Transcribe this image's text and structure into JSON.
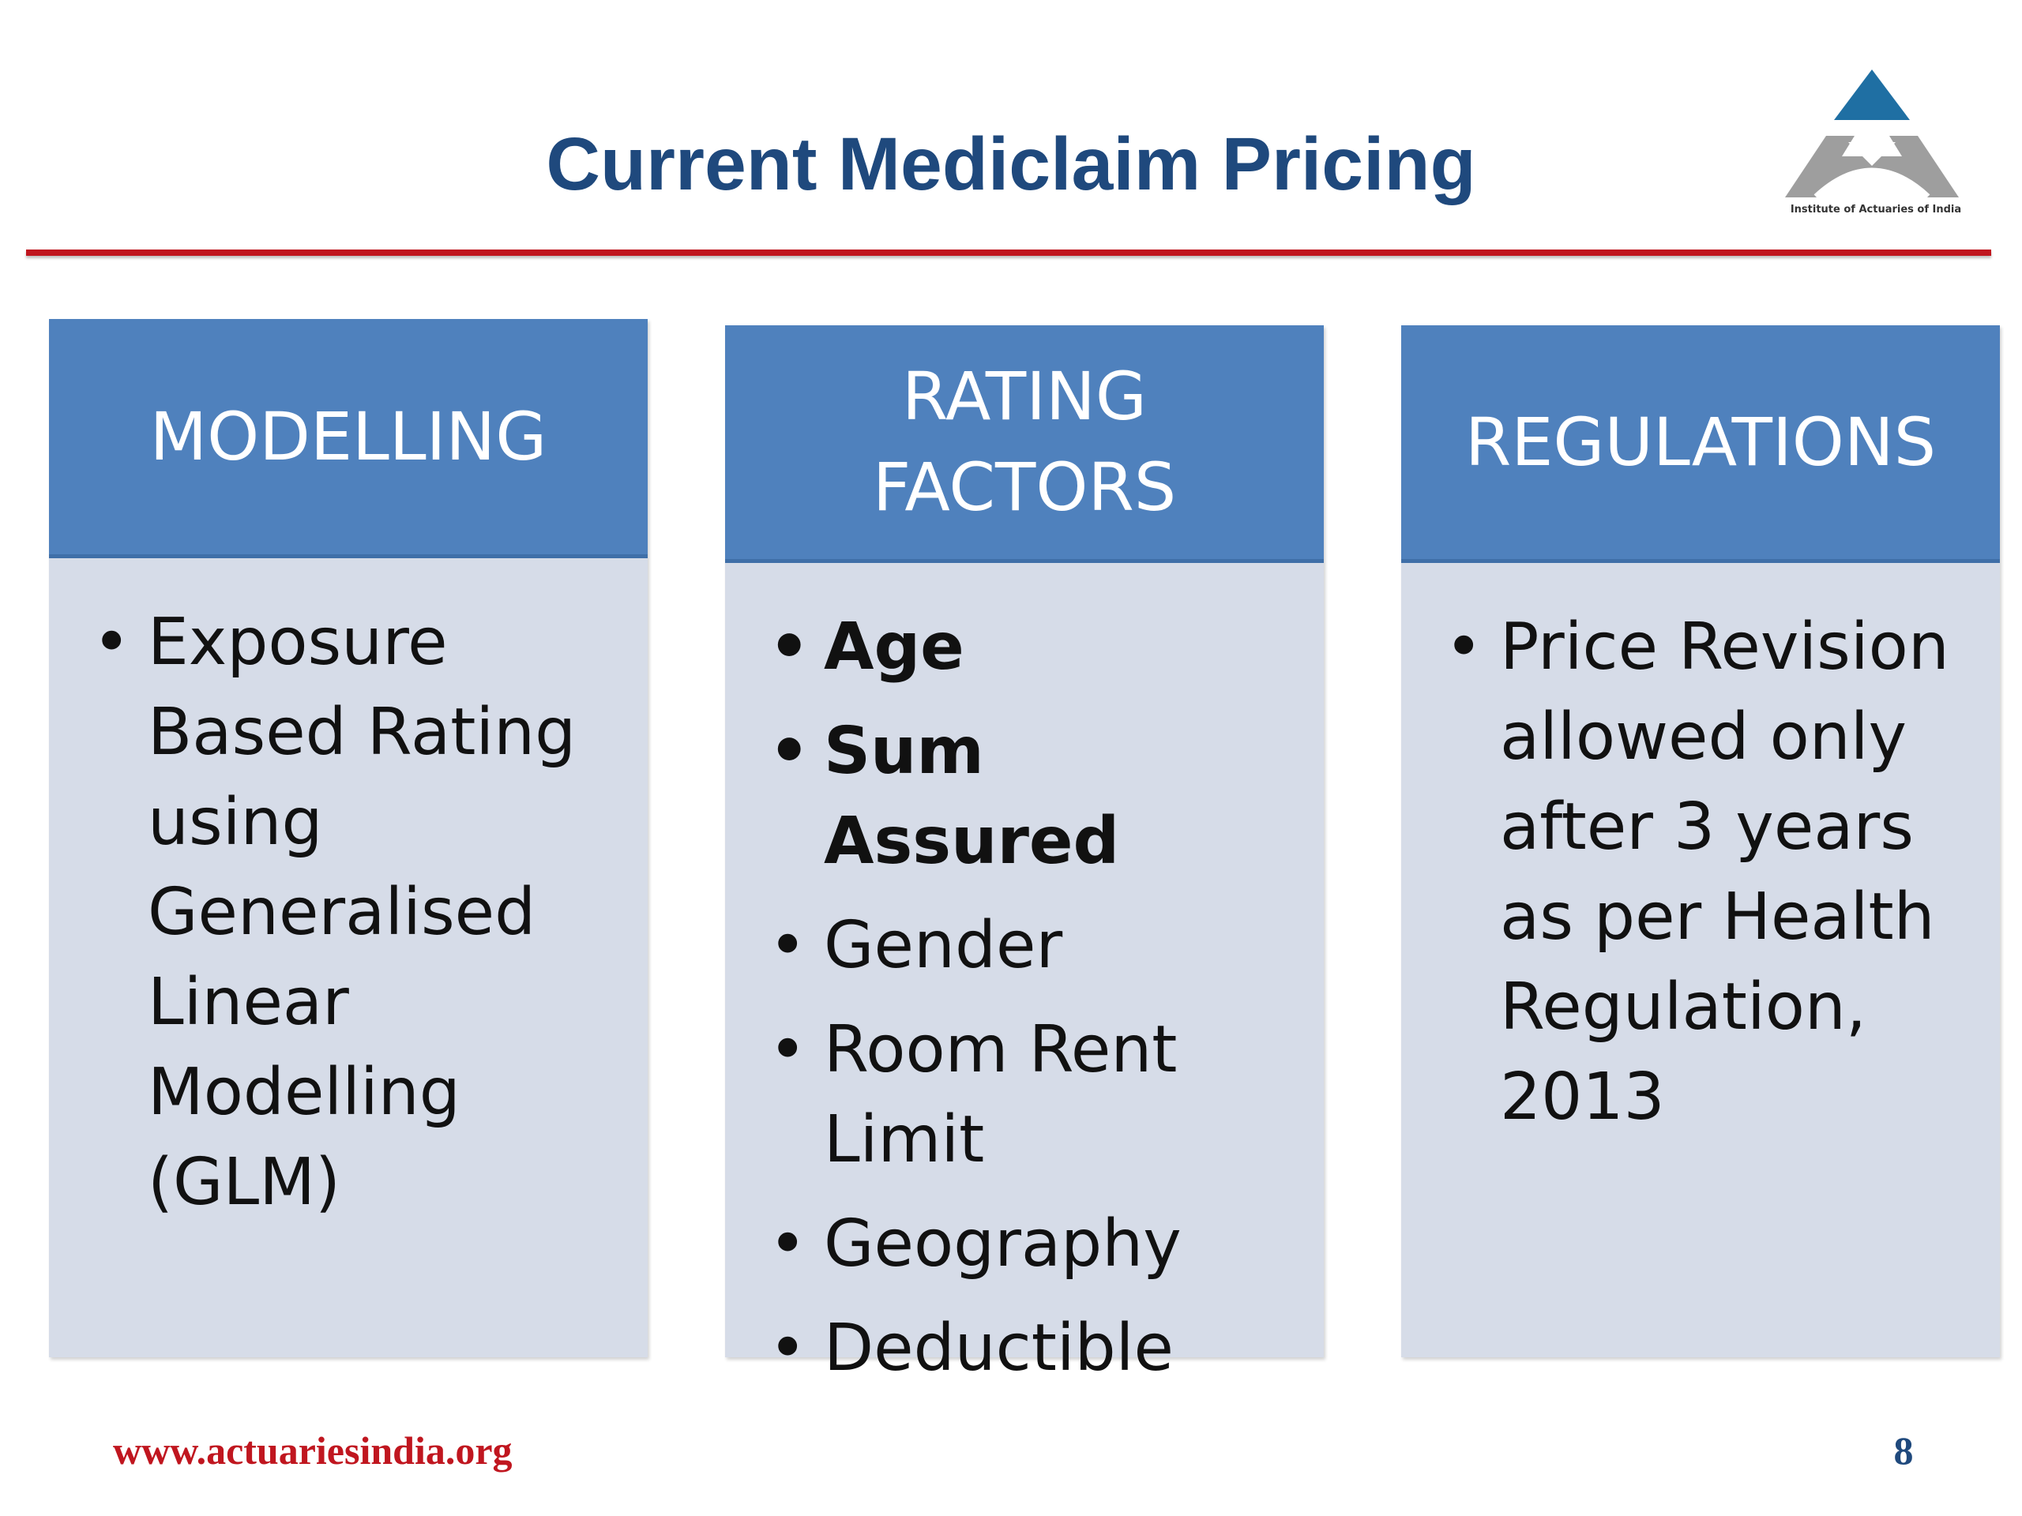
{
  "slide": {
    "title": "Current Mediclaim Pricing",
    "logo": {
      "icon": "institute-of-actuaries-of-india-logo",
      "caption": "Institute of Actuaries of India",
      "colors": {
        "top": "#1f6fa3",
        "base": "#9e9e9e"
      }
    },
    "accent_rule_color": "#c0161f",
    "columns": [
      {
        "header": "MODELLING",
        "bullets": [
          {
            "text": "Exposure Based Rating using Generalised Linear Modelling (GLM)",
            "bold": false
          }
        ]
      },
      {
        "header": "RATING FACTORS",
        "bullets": [
          {
            "text": "Age",
            "bold": true
          },
          {
            "text": "Sum Assured",
            "bold": true
          },
          {
            "text": "Gender",
            "bold": false
          },
          {
            "text": "Room Rent Limit",
            "bold": false
          },
          {
            "text": "Geography",
            "bold": false
          },
          {
            "text": "Deductible",
            "bold": false
          }
        ]
      },
      {
        "header": "REGULATIONS",
        "bullets": [
          {
            "text": "Price Revision allowed only after 3 years as per Health Regulation, 2013",
            "bold": false
          }
        ]
      }
    ],
    "header_color": "#4f81bd",
    "body_color": "#d6dce8",
    "footer": {
      "url": "www.actuariesindia.org",
      "page_number": "8"
    }
  }
}
